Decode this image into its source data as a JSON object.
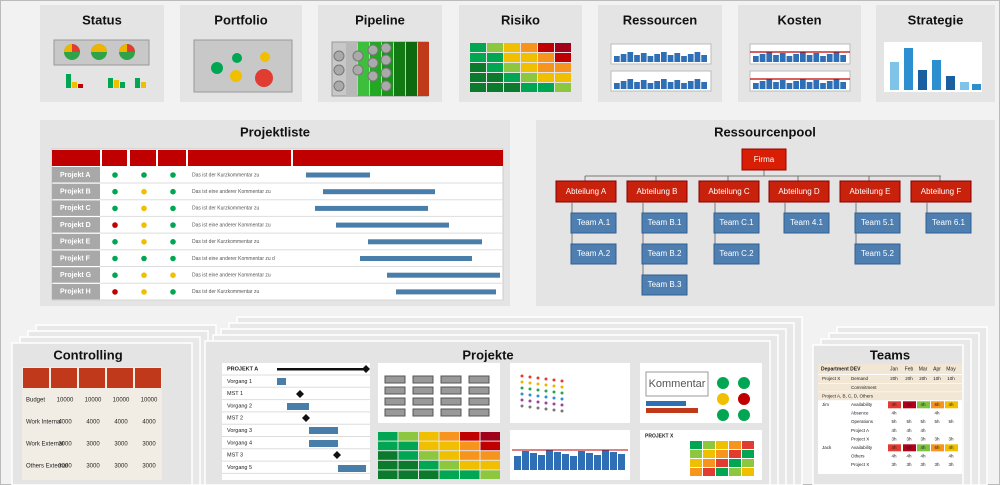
{
  "tiles": [
    {
      "title": "Status"
    },
    {
      "title": "Portfolio"
    },
    {
      "title": "Pipeline"
    },
    {
      "title": "Risiko"
    },
    {
      "title": "Ressourcen"
    },
    {
      "title": "Kosten"
    },
    {
      "title": "Strategie"
    }
  ],
  "projektliste": {
    "title": "Projektliste",
    "rows": [
      {
        "name": "Projekt A",
        "comment": "Das ist der Kurzkommentar zu"
      },
      {
        "name": "Projekt B",
        "comment": "Das ist eine anderer Kommentar zu"
      },
      {
        "name": "Projekt C",
        "comment": "Das ist der Kurzkommentar zu"
      },
      {
        "name": "Projekt D",
        "comment": "Das ist eine anderer Kommentar zu"
      },
      {
        "name": "Projekt E",
        "comment": "Das ist der Kurzkommentar zu"
      },
      {
        "name": "Projekt F",
        "comment": "Das ist eine anderer Kommentar zu d"
      },
      {
        "name": "Projekt G",
        "comment": "Das ist eine anderer Kommentar zu"
      },
      {
        "name": "Projekt H",
        "comment": "Das ist der Kurzkommentar zu"
      }
    ]
  },
  "ressourcenpool": {
    "title": "Ressourcenpool",
    "root": "Firma",
    "departments": [
      {
        "name": "Abteilung A",
        "teams": [
          "Team A.1",
          "Team A.2"
        ]
      },
      {
        "name": "Abteilung B",
        "teams": [
          "Team B.1",
          "Team B.2",
          "Team B.3"
        ]
      },
      {
        "name": "Abteilung C",
        "teams": [
          "Team C.1",
          "Team C.2"
        ]
      },
      {
        "name": "Abteilung D",
        "teams": [
          "Team 4.1"
        ]
      },
      {
        "name": "Abteilung E",
        "teams": [
          "Team 5.1",
          "Team 5.2"
        ]
      },
      {
        "name": "Abteilung F",
        "teams": [
          "Team 6.1"
        ]
      }
    ]
  },
  "controlling": {
    "title": "Controlling",
    "rows": [
      {
        "label": "Budget",
        "values": [
          10000,
          10000,
          10000,
          10000
        ]
      },
      {
        "label": "Work Internal",
        "values": [
          4000,
          4000,
          4000,
          4000
        ]
      },
      {
        "label": "Work External",
        "values": [
          3000,
          3000,
          3000,
          3000
        ]
      },
      {
        "label": "Others External",
        "values": [
          3000,
          3000,
          3000,
          3000
        ]
      }
    ]
  },
  "projekte": {
    "title": "Projekte",
    "gantt": [
      "PROJEKT A",
      "Vorgang 1",
      "MST 1",
      "Vorgang 2",
      "MST 2",
      "Vorgang 3",
      "Vorgang 4",
      "MST 3",
      "Vorgang 5"
    ],
    "comment": "Kommentar",
    "table_title": "PROJEKT X"
  },
  "teams": {
    "title": "Teams",
    "header": [
      "Department DEV",
      "Jan",
      "Feb",
      "Mar",
      "Apr",
      "May"
    ],
    "rows": [
      {
        "person": "Project X",
        "label": "Demand",
        "cells": [
          "20h",
          "20h",
          "20h",
          "10h",
          "10h"
        ]
      },
      {
        "label": "Commitment",
        "cells": [
          null,
          null,
          null,
          null,
          null
        ]
      },
      {
        "person": "Project A, B, C, D, Others",
        "cells": [
          null,
          null,
          null,
          null,
          null
        ]
      },
      {
        "person": "Jim",
        "label": "Availability",
        "cells": [
          "4h",
          "5h",
          "4h",
          "6h",
          "4h"
        ]
      },
      {
        "label": "Absence",
        "cells": [
          "4h",
          null,
          null,
          "4h",
          null
        ]
      },
      {
        "label": "Operations",
        "cells": [
          "5h",
          "5h",
          "5h",
          "5h",
          "5h"
        ]
      },
      {
        "label": "Project A",
        "cells": [
          "4h",
          "4h",
          "4h",
          null,
          null
        ]
      },
      {
        "label": "Project X",
        "cells": [
          "3h",
          "3h",
          "3h",
          "3h",
          "3h"
        ]
      },
      {
        "person": "Jack",
        "label": "Availability",
        "cells": [
          "4h",
          "5h",
          "4h",
          "6h",
          "4h"
        ]
      },
      {
        "label": "Others",
        "cells": [
          "4h",
          "4h",
          "4h",
          null,
          "4h"
        ]
      },
      {
        "label": "Project X",
        "cells": [
          "3h",
          "3h",
          "3h",
          "3h",
          "3h"
        ]
      }
    ]
  }
}
